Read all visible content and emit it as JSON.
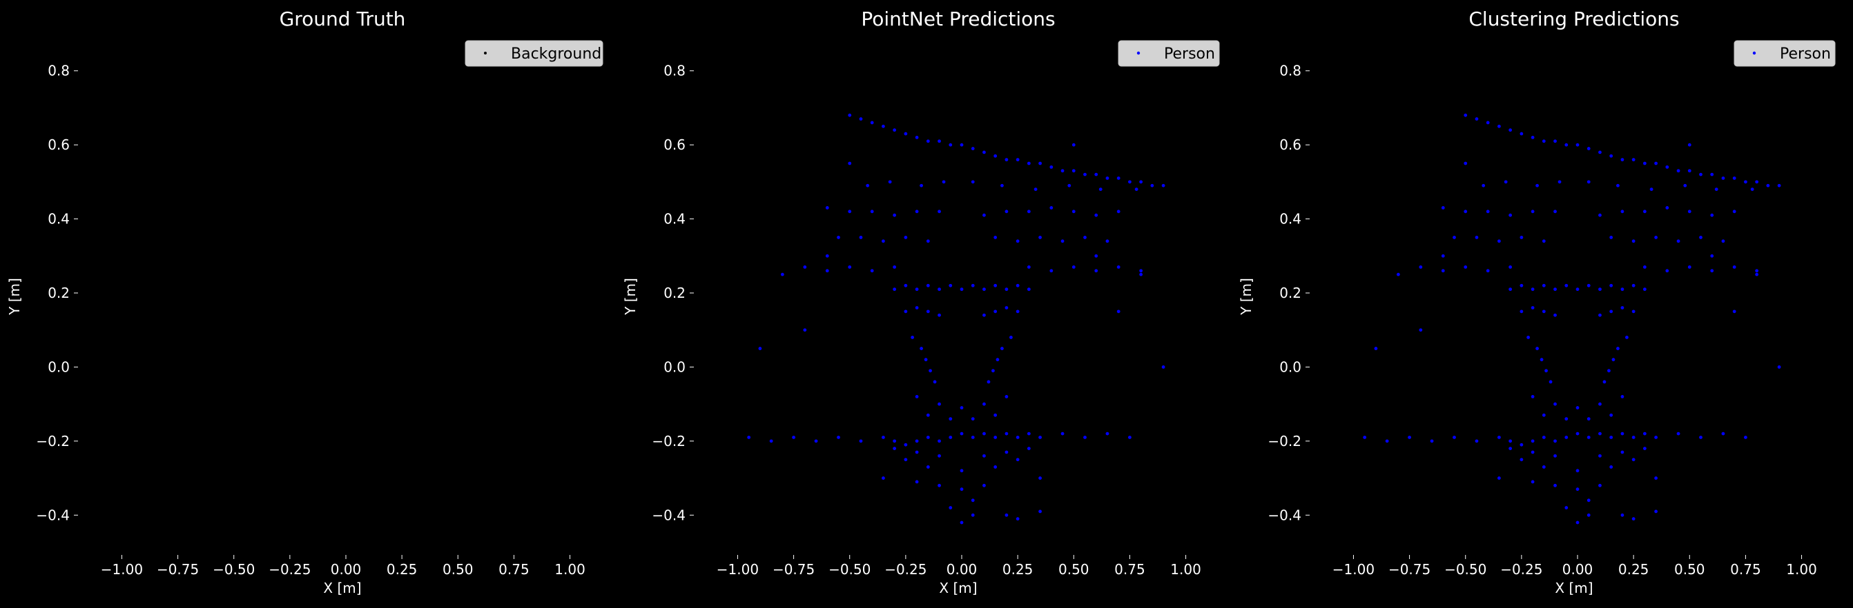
{
  "figure": {
    "background": "#000000"
  },
  "chart_data": [
    {
      "type": "scatter",
      "title": "Ground Truth",
      "xlabel": "X [m]",
      "ylabel": "Y [m]",
      "xlim": [
        -1.1,
        1.1
      ],
      "ylim": [
        -0.5,
        0.9
      ],
      "xticks": [
        "−1.00",
        "−0.75",
        "−0.50",
        "−0.25",
        "0.00",
        "0.25",
        "0.50",
        "0.75",
        "1.00"
      ],
      "xtick_values": [
        -1.0,
        -0.75,
        -0.5,
        -0.25,
        0.0,
        0.25,
        0.5,
        0.75,
        1.0
      ],
      "yticks": [
        "−0.4",
        "−0.2",
        "0.0",
        "0.2",
        "0.4",
        "0.6",
        "0.8"
      ],
      "ytick_values": [
        -0.4,
        -0.2,
        0.0,
        0.2,
        0.4,
        0.6,
        0.8
      ],
      "grid": false,
      "legend_position": "top-right",
      "series": [
        {
          "name": "Background",
          "color": "#000000",
          "x": [],
          "y": []
        }
      ]
    },
    {
      "type": "scatter",
      "title": "PointNet Predictions",
      "xlabel": "X [m]",
      "ylabel": "Y [m]",
      "xlim": [
        -1.1,
        1.1
      ],
      "ylim": [
        -0.5,
        0.9
      ],
      "xticks": [
        "−1.00",
        "−0.75",
        "−0.50",
        "−0.25",
        "0.00",
        "0.25",
        "0.50",
        "0.75",
        "1.00"
      ],
      "xtick_values": [
        -1.0,
        -0.75,
        -0.5,
        -0.25,
        0.0,
        0.25,
        0.5,
        0.75,
        1.0
      ],
      "yticks": [
        "−0.4",
        "−0.2",
        "0.0",
        "0.2",
        "0.4",
        "0.6",
        "0.8"
      ],
      "ytick_values": [
        -0.4,
        -0.2,
        0.0,
        0.2,
        0.4,
        0.6,
        0.8
      ],
      "grid": false,
      "legend_position": "top-right",
      "series": [
        {
          "name": "Person",
          "color": "#0000ff",
          "x": [
            -0.5,
            -0.45,
            -0.4,
            -0.35,
            -0.3,
            -0.25,
            -0.2,
            -0.15,
            -0.1,
            -0.05,
            0.0,
            0.05,
            0.1,
            0.15,
            0.2,
            0.25,
            0.3,
            0.35,
            0.4,
            0.45,
            0.5,
            0.55,
            0.6,
            0.65,
            0.7,
            0.75,
            0.8,
            0.85,
            0.9,
            -0.42,
            -0.32,
            -0.18,
            -0.08,
            0.05,
            0.18,
            0.33,
            0.48,
            0.62,
            0.78,
            -0.6,
            -0.5,
            -0.4,
            -0.3,
            -0.2,
            -0.1,
            0.1,
            0.2,
            0.3,
            0.4,
            0.5,
            0.6,
            0.7,
            -0.55,
            -0.45,
            -0.35,
            -0.25,
            -0.15,
            0.15,
            0.25,
            0.35,
            0.45,
            0.55,
            0.65,
            -0.7,
            -0.6,
            -0.5,
            -0.4,
            -0.3,
            0.3,
            0.4,
            0.5,
            0.6,
            0.7,
            0.8,
            -0.95,
            -0.85,
            -0.75,
            -0.65,
            -0.55,
            -0.45,
            -0.35,
            -0.3,
            -0.25,
            -0.2,
            -0.15,
            -0.1,
            -0.05,
            0.0,
            0.05,
            0.1,
            0.15,
            0.2,
            0.25,
            0.3,
            0.35,
            0.45,
            0.55,
            0.65,
            0.75,
            -0.3,
            -0.25,
            -0.2,
            -0.15,
            -0.1,
            -0.05,
            0.0,
            0.05,
            0.1,
            0.15,
            0.2,
            0.25,
            0.3,
            -0.25,
            -0.2,
            -0.15,
            -0.1,
            0.1,
            0.15,
            0.2,
            0.25,
            -0.22,
            -0.18,
            -0.16,
            -0.14,
            -0.12,
            0.12,
            0.14,
            0.16,
            0.18,
            0.22,
            -0.2,
            -0.1,
            0.0,
            0.1,
            0.2,
            -0.15,
            -0.05,
            0.05,
            0.15,
            -0.25,
            -0.15,
            0.0,
            0.15,
            0.25,
            -0.3,
            -0.2,
            -0.1,
            0.1,
            0.2,
            0.3,
            -0.1,
            0.0,
            0.1,
            -0.35,
            -0.2,
            0.05,
            0.2,
            0.35,
            -0.8,
            -0.6,
            0.6,
            0.8,
            -0.9,
            0.9,
            -0.7,
            0.7,
            -0.5,
            0.5,
            0.0,
            -0.05,
            0.05,
            0.25,
            0.35
          ],
          "y": [
            0.68,
            0.67,
            0.66,
            0.65,
            0.64,
            0.63,
            0.62,
            0.61,
            0.61,
            0.6,
            0.6,
            0.59,
            0.58,
            0.57,
            0.56,
            0.56,
            0.55,
            0.55,
            0.54,
            0.53,
            0.53,
            0.52,
            0.52,
            0.51,
            0.51,
            0.5,
            0.5,
            0.49,
            0.49,
            0.49,
            0.5,
            0.49,
            0.5,
            0.5,
            0.49,
            0.48,
            0.49,
            0.48,
            0.48,
            0.43,
            0.42,
            0.42,
            0.41,
            0.42,
            0.42,
            0.41,
            0.42,
            0.42,
            0.43,
            0.42,
            0.41,
            0.42,
            0.35,
            0.35,
            0.34,
            0.35,
            0.34,
            0.35,
            0.34,
            0.35,
            0.34,
            0.35,
            0.34,
            0.27,
            0.26,
            0.27,
            0.26,
            0.27,
            0.27,
            0.26,
            0.27,
            0.26,
            0.27,
            0.26,
            -0.19,
            -0.2,
            -0.19,
            -0.2,
            -0.19,
            -0.2,
            -0.19,
            -0.2,
            -0.21,
            -0.2,
            -0.19,
            -0.2,
            -0.19,
            -0.18,
            -0.19,
            -0.18,
            -0.19,
            -0.18,
            -0.19,
            -0.18,
            -0.19,
            -0.18,
            -0.19,
            -0.18,
            -0.19,
            0.21,
            0.22,
            0.21,
            0.22,
            0.21,
            0.22,
            0.21,
            0.22,
            0.21,
            0.22,
            0.21,
            0.22,
            0.21,
            0.15,
            0.16,
            0.15,
            0.14,
            0.14,
            0.15,
            0.16,
            0.15,
            0.08,
            0.05,
            0.02,
            -0.01,
            -0.04,
            -0.04,
            -0.01,
            0.02,
            0.05,
            0.08,
            -0.08,
            -0.1,
            -0.11,
            -0.1,
            -0.08,
            -0.13,
            -0.14,
            -0.14,
            -0.13,
            -0.25,
            -0.27,
            -0.28,
            -0.27,
            -0.25,
            -0.22,
            -0.23,
            -0.24,
            -0.24,
            -0.23,
            -0.22,
            -0.32,
            -0.33,
            -0.32,
            -0.3,
            -0.31,
            -0.36,
            -0.4,
            -0.3,
            0.25,
            0.3,
            0.3,
            0.25,
            0.05,
            0.0,
            0.1,
            0.15,
            0.55,
            0.6,
            -0.42,
            -0.38,
            -0.4,
            -0.41,
            -0.39
          ]
        }
      ]
    },
    {
      "type": "scatter",
      "title": "Clustering Predictions",
      "xlabel": "X [m]",
      "ylabel": "Y [m]",
      "xlim": [
        -1.1,
        1.1
      ],
      "ylim": [
        -0.5,
        0.9
      ],
      "xticks": [
        "−1.00",
        "−0.75",
        "−0.50",
        "−0.25",
        "0.00",
        "0.25",
        "0.50",
        "0.75",
        "1.00"
      ],
      "xtick_values": [
        -1.0,
        -0.75,
        -0.5,
        -0.25,
        0.0,
        0.25,
        0.5,
        0.75,
        1.0
      ],
      "yticks": [
        "−0.4",
        "−0.2",
        "0.0",
        "0.2",
        "0.4",
        "0.6",
        "0.8"
      ],
      "ytick_values": [
        -0.4,
        -0.2,
        0.0,
        0.2,
        0.4,
        0.6,
        0.8
      ],
      "grid": false,
      "legend_position": "top-right",
      "series": [
        {
          "name": "Person",
          "color": "#0000ff",
          "x": [
            -0.5,
            -0.45,
            -0.4,
            -0.35,
            -0.3,
            -0.25,
            -0.2,
            -0.15,
            -0.1,
            -0.05,
            0.0,
            0.05,
            0.1,
            0.15,
            0.2,
            0.25,
            0.3,
            0.35,
            0.4,
            0.45,
            0.5,
            0.55,
            0.6,
            0.65,
            0.7,
            0.75,
            0.8,
            0.85,
            0.9,
            -0.42,
            -0.32,
            -0.18,
            -0.08,
            0.05,
            0.18,
            0.33,
            0.48,
            0.62,
            0.78,
            -0.6,
            -0.5,
            -0.4,
            -0.3,
            -0.2,
            -0.1,
            0.1,
            0.2,
            0.3,
            0.4,
            0.5,
            0.6,
            0.7,
            -0.55,
            -0.45,
            -0.35,
            -0.25,
            -0.15,
            0.15,
            0.25,
            0.35,
            0.45,
            0.55,
            0.65,
            -0.7,
            -0.6,
            -0.5,
            -0.4,
            -0.3,
            0.3,
            0.4,
            0.5,
            0.6,
            0.7,
            0.8,
            -0.95,
            -0.85,
            -0.75,
            -0.65,
            -0.55,
            -0.45,
            -0.35,
            -0.3,
            -0.25,
            -0.2,
            -0.15,
            -0.1,
            -0.05,
            0.0,
            0.05,
            0.1,
            0.15,
            0.2,
            0.25,
            0.3,
            0.35,
            0.45,
            0.55,
            0.65,
            0.75,
            -0.3,
            -0.25,
            -0.2,
            -0.15,
            -0.1,
            -0.05,
            0.0,
            0.05,
            0.1,
            0.15,
            0.2,
            0.25,
            0.3,
            -0.25,
            -0.2,
            -0.15,
            -0.1,
            0.1,
            0.15,
            0.2,
            0.25,
            -0.22,
            -0.18,
            -0.16,
            -0.14,
            -0.12,
            0.12,
            0.14,
            0.16,
            0.18,
            0.22,
            -0.2,
            -0.1,
            0.0,
            0.1,
            0.2,
            -0.15,
            -0.05,
            0.05,
            0.15,
            -0.25,
            -0.15,
            0.0,
            0.15,
            0.25,
            -0.3,
            -0.2,
            -0.1,
            0.1,
            0.2,
            0.3,
            -0.1,
            0.0,
            0.1,
            -0.35,
            -0.2,
            0.05,
            0.2,
            0.35,
            -0.8,
            -0.6,
            0.6,
            0.8,
            -0.9,
            0.9,
            -0.7,
            0.7,
            -0.5,
            0.5,
            0.0,
            -0.05,
            0.05,
            0.25,
            0.35
          ],
          "y": [
            0.68,
            0.67,
            0.66,
            0.65,
            0.64,
            0.63,
            0.62,
            0.61,
            0.61,
            0.6,
            0.6,
            0.59,
            0.58,
            0.57,
            0.56,
            0.56,
            0.55,
            0.55,
            0.54,
            0.53,
            0.53,
            0.52,
            0.52,
            0.51,
            0.51,
            0.5,
            0.5,
            0.49,
            0.49,
            0.49,
            0.5,
            0.49,
            0.5,
            0.5,
            0.49,
            0.48,
            0.49,
            0.48,
            0.48,
            0.43,
            0.42,
            0.42,
            0.41,
            0.42,
            0.42,
            0.41,
            0.42,
            0.42,
            0.43,
            0.42,
            0.41,
            0.42,
            0.35,
            0.35,
            0.34,
            0.35,
            0.34,
            0.35,
            0.34,
            0.35,
            0.34,
            0.35,
            0.34,
            0.27,
            0.26,
            0.27,
            0.26,
            0.27,
            0.27,
            0.26,
            0.27,
            0.26,
            0.27,
            0.26,
            -0.19,
            -0.2,
            -0.19,
            -0.2,
            -0.19,
            -0.2,
            -0.19,
            -0.2,
            -0.21,
            -0.2,
            -0.19,
            -0.2,
            -0.19,
            -0.18,
            -0.19,
            -0.18,
            -0.19,
            -0.18,
            -0.19,
            -0.18,
            -0.19,
            -0.18,
            -0.19,
            -0.18,
            -0.19,
            0.21,
            0.22,
            0.21,
            0.22,
            0.21,
            0.22,
            0.21,
            0.22,
            0.21,
            0.22,
            0.21,
            0.22,
            0.21,
            0.15,
            0.16,
            0.15,
            0.14,
            0.14,
            0.15,
            0.16,
            0.15,
            0.08,
            0.05,
            0.02,
            -0.01,
            -0.04,
            -0.04,
            -0.01,
            0.02,
            0.05,
            0.08,
            -0.08,
            -0.1,
            -0.11,
            -0.1,
            -0.08,
            -0.13,
            -0.14,
            -0.14,
            -0.13,
            -0.25,
            -0.27,
            -0.28,
            -0.27,
            -0.25,
            -0.22,
            -0.23,
            -0.24,
            -0.24,
            -0.23,
            -0.22,
            -0.32,
            -0.33,
            -0.32,
            -0.3,
            -0.31,
            -0.36,
            -0.4,
            -0.3,
            0.25,
            0.3,
            0.3,
            0.25,
            0.05,
            0.0,
            0.1,
            0.15,
            0.55,
            0.6,
            -0.42,
            -0.38,
            -0.4,
            -0.41,
            -0.39
          ]
        }
      ]
    }
  ]
}
